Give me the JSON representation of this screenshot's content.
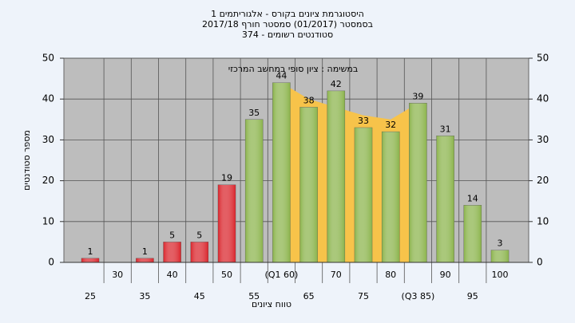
{
  "chart_data": {
    "type": "bar",
    "title": [
      "היסטוגרמת ציונים בקורס - אלגוריתמים 1",
      "בסמסטר  (01/2017)  סמסטר חורף 2017/18",
      "סטודנטים רשומים - 374"
    ],
    "subtitle": "במשימה : ציון סופי במחשב המרכזי",
    "x_label": "טווח ציונים",
    "y_label": "מספר סטודנטים",
    "categories": [
      "25",
      "30",
      "35",
      "40",
      "45",
      "50",
      "55",
      "(Q1 60)",
      "65",
      "70",
      "75",
      "80",
      "(Q3 85)",
      "90",
      "95",
      "100"
    ],
    "values": [
      1,
      null,
      1,
      5,
      5,
      19,
      35,
      44,
      38,
      42,
      33,
      32,
      39,
      31,
      14,
      3
    ],
    "colors": [
      "#d9232a",
      "#d9232a",
      "#d9232a",
      "#d9232a",
      "#d9232a",
      "#d9232a",
      "#8ab34a",
      "#8ab34a",
      "#8ab34a",
      "#8ab34a",
      "#8ab34a",
      "#8ab34a",
      "#8ab34a",
      "#8ab34a",
      "#8ab34a",
      "#8ab34a"
    ],
    "band": {
      "values": [
        null,
        null,
        null,
        null,
        null,
        null,
        null,
        44,
        40,
        38,
        36,
        35,
        39,
        null,
        null,
        null
      ],
      "color": "#f7c34a"
    },
    "ylim": [
      0,
      50
    ],
    "yticks": [
      0,
      10,
      20,
      30,
      40,
      50
    ],
    "grid": true
  }
}
